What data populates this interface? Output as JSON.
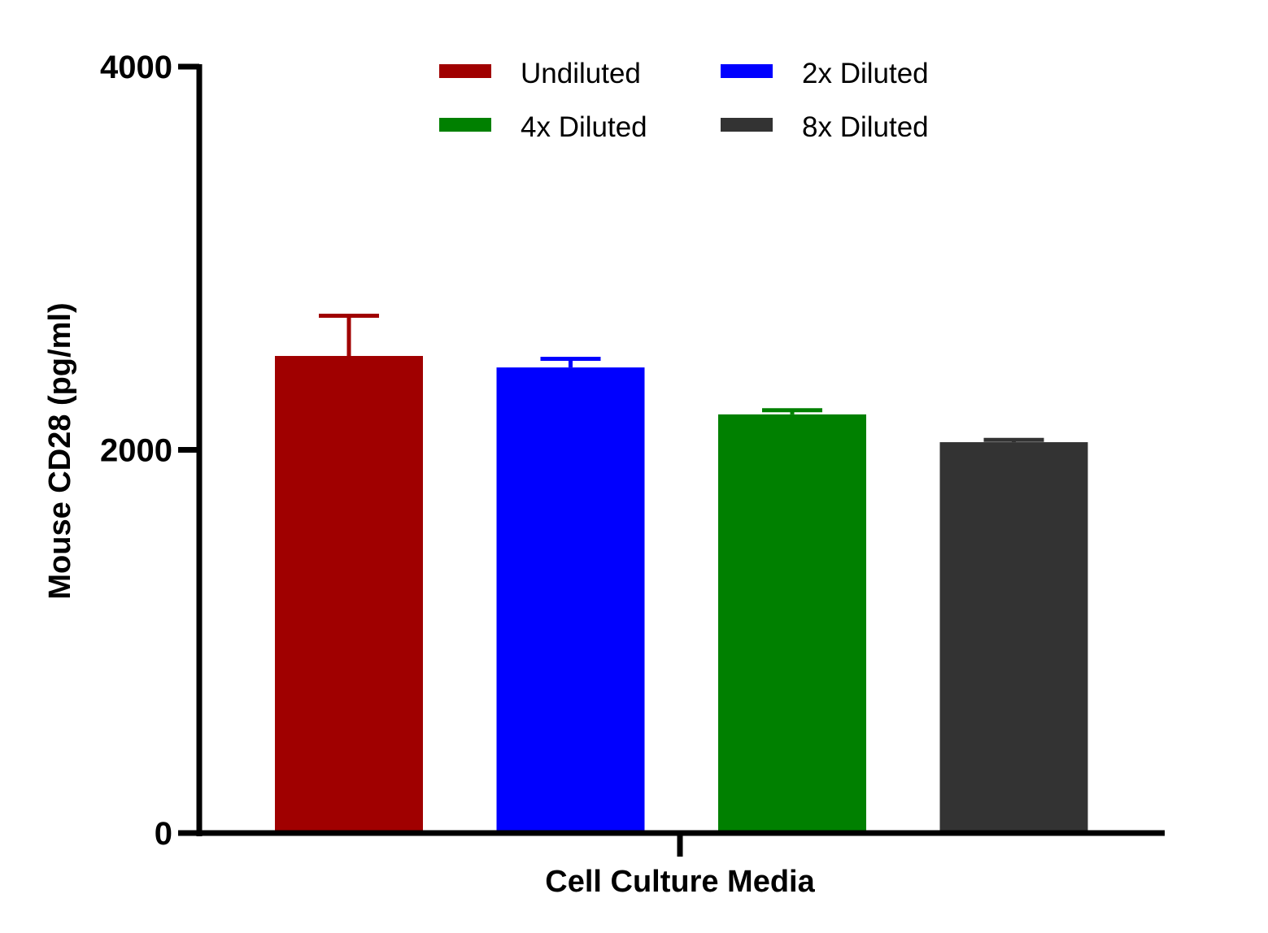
{
  "chart_data": {
    "type": "bar",
    "xlabel": "Cell  Culture Media",
    "ylabel": "Mouse CD28 (pg/ml)",
    "ylim": [
      0,
      4000
    ],
    "yticks": [
      0,
      2000,
      4000
    ],
    "categories": [
      "Cell  Culture Media"
    ],
    "series": [
      {
        "name": "Undiluted",
        "color": "#a00000",
        "values": [
          2490
        ],
        "error": [
          210
        ]
      },
      {
        "name": "2x Diluted",
        "color": "#0000ff",
        "values": [
          2430
        ],
        "error": [
          45
        ]
      },
      {
        "name": "4x Diluted",
        "color": "#008000",
        "values": [
          2185
        ],
        "error": [
          22
        ]
      },
      {
        "name": "8x Diluted",
        "color": "#333333",
        "values": [
          2040
        ],
        "error": [
          12
        ]
      }
    ],
    "legend_position": "top"
  }
}
